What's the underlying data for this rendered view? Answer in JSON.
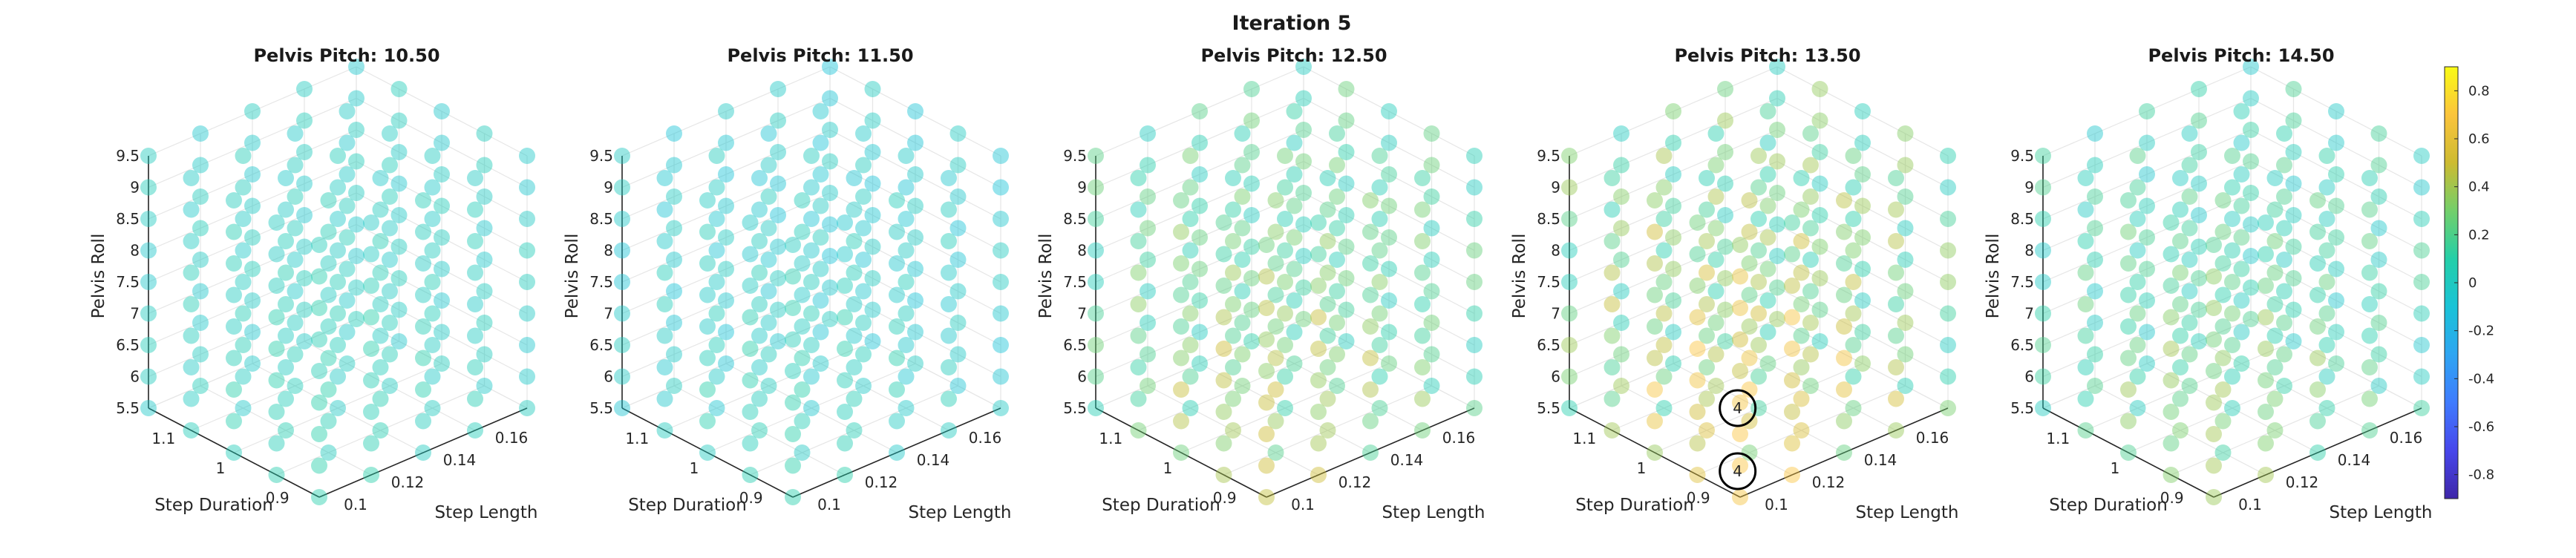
{
  "figure": {
    "title": "Iteration 5"
  },
  "chart_data": [
    {
      "type": "scatter3d",
      "title": "Pelvis Pitch: 10.50",
      "xlabel": "Step Length",
      "ylabel": "Step Duration",
      "zlabel": "Pelvis Roll",
      "x_ticks": [
        "0.1",
        "0.12",
        "0.14",
        "0.16"
      ],
      "y_ticks": [
        "0.9",
        "1",
        "1.1"
      ],
      "z_ticks": [
        "5.5",
        "6",
        "6.5",
        "7",
        "7.5",
        "8",
        "8.5",
        "9",
        "9.5"
      ],
      "xlim": [
        0.09,
        0.17
      ],
      "ylim": [
        0.85,
        1.15
      ],
      "zlim": [
        5.5,
        9.5
      ],
      "value_range": [
        -0.05,
        0.1
      ],
      "annotations": []
    },
    {
      "type": "scatter3d",
      "title": "Pelvis Pitch: 11.50",
      "xlabel": "Step Length",
      "ylabel": "Step Duration",
      "zlabel": "Pelvis Roll",
      "x_ticks": [
        "0.1",
        "0.12",
        "0.14",
        "0.16"
      ],
      "y_ticks": [
        "0.9",
        "1",
        "1.1"
      ],
      "z_ticks": [
        "5.5",
        "6",
        "6.5",
        "7",
        "7.5",
        "8",
        "8.5",
        "9",
        "9.5"
      ],
      "xlim": [
        0.09,
        0.17
      ],
      "ylim": [
        0.85,
        1.15
      ],
      "zlim": [
        5.5,
        9.5
      ],
      "value_range": [
        -0.1,
        0.1
      ],
      "annotations": []
    },
    {
      "type": "scatter3d",
      "title": "Pelvis Pitch: 12.50",
      "xlabel": "Step Length",
      "ylabel": "Step Duration",
      "zlabel": "Pelvis Roll",
      "x_ticks": [
        "0.1",
        "0.12",
        "0.14",
        "0.16"
      ],
      "y_ticks": [
        "0.9",
        "1",
        "1.1"
      ],
      "z_ticks": [
        "5.5",
        "6",
        "6.5",
        "7",
        "7.5",
        "8",
        "8.5",
        "9",
        "9.5"
      ],
      "xlim": [
        0.09,
        0.17
      ],
      "ylim": [
        0.85,
        1.15
      ],
      "zlim": [
        5.5,
        9.5
      ],
      "value_range": [
        0.0,
        0.5
      ],
      "annotations": []
    },
    {
      "type": "scatter3d",
      "title": "Pelvis Pitch: 13.50",
      "xlabel": "Step Length",
      "ylabel": "Step Duration",
      "zlabel": "Pelvis Roll",
      "x_ticks": [
        "0.1",
        "0.12",
        "0.14",
        "0.16"
      ],
      "y_ticks": [
        "0.9",
        "1",
        "1.1"
      ],
      "z_ticks": [
        "5.5",
        "6",
        "6.5",
        "7",
        "7.5",
        "8",
        "8.5",
        "9",
        "9.5"
      ],
      "xlim": [
        0.09,
        0.17
      ],
      "ylim": [
        0.85,
        1.15
      ],
      "zlim": [
        5.5,
        9.5
      ],
      "value_range": [
        0.0,
        0.7
      ],
      "annotations": [
        {
          "label": "4",
          "x": 0.1,
          "y": 0.9,
          "z": 6.5
        },
        {
          "label": "4",
          "x": 0.1,
          "y": 0.9,
          "z": 5.5
        }
      ]
    },
    {
      "type": "scatter3d",
      "title": "Pelvis Pitch: 14.50",
      "xlabel": "Step Length",
      "ylabel": "Step Duration",
      "zlabel": "Pelvis Roll",
      "x_ticks": [
        "0.1",
        "0.12",
        "0.14",
        "0.16"
      ],
      "y_ticks": [
        "0.9",
        "1",
        "1.1"
      ],
      "z_ticks": [
        "5.5",
        "6",
        "6.5",
        "7",
        "7.5",
        "8",
        "8.5",
        "9",
        "9.5"
      ],
      "xlim": [
        0.09,
        0.17
      ],
      "ylim": [
        0.85,
        1.15
      ],
      "zlim": [
        5.5,
        9.5
      ],
      "value_range": [
        -0.05,
        0.4
      ],
      "annotations": []
    }
  ],
  "colorbar": {
    "ticks": [
      "0.8",
      "0.6",
      "0.4",
      "0.2",
      "0",
      "-0.2",
      "-0.4",
      "-0.6",
      "-0.8"
    ],
    "range": [
      -0.9,
      0.9
    ],
    "colors": [
      "#3e26a8",
      "#4746eb",
      "#3f7bfe",
      "#2ea5f2",
      "#19c3d7",
      "#24cfa8",
      "#73cf6a",
      "#cdbb31",
      "#fbc43c",
      "#f9fb15"
    ]
  }
}
